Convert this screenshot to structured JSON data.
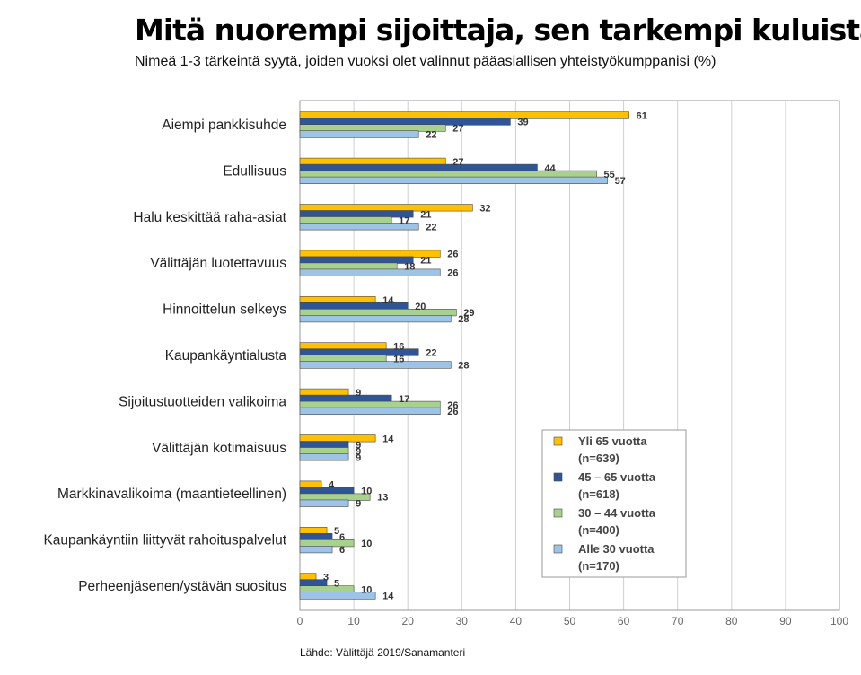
{
  "header": {
    "title": "Mitä nuorempi sijoittaja, sen tarkempi kuluista",
    "subtitle": "Nimeä 1-3 tärkeintä syytä, joiden vuoksi olet valinnut pääasiallisen yhteistyökumppanisi (%)"
  },
  "source": "Lähde: Välittäjä 2019/Sanamanteri",
  "chart_data": {
    "type": "bar",
    "orientation": "horizontal",
    "title": "Mitä nuorempi sijoittaja, sen tarkempi kuluista",
    "subtitle": "Nimeä 1-3 tärkeintä syytä, joiden vuoksi olet valinnut pääasiallisen yhteistyökumppanisi (%)",
    "xlim": [
      0,
      100
    ],
    "xticks": [
      0,
      10,
      20,
      30,
      40,
      50,
      60,
      70,
      80,
      90,
      100
    ],
    "grid": "vertical",
    "legend_position": "bottom-right",
    "categories": [
      "Aiempi pankkisuhde",
      "Edullisuus",
      "Halu keskittää raha-asiat",
      "Välittäjän luotettavuus",
      "Hinnoittelun selkeys",
      "Kaupankäyntialusta",
      "Sijoitustuotteiden valikoima",
      "Välittäjän kotimaisuus",
      "Markkinavalikoima (maantieteellinen)",
      "Kaupankäyntiin liittyvät rahoituspalvelut",
      "Perheenjäsenen/ystävän suositus"
    ],
    "series": [
      {
        "name": "Yli 65 vuotta",
        "n": "(n=639)",
        "color": "#FFC000",
        "values": [
          61,
          27,
          32,
          26,
          14,
          16,
          9,
          14,
          4,
          5,
          3
        ]
      },
      {
        "name": "45 – 65 vuotta",
        "n": "(n=618)",
        "color": "#2F5597",
        "values": [
          39,
          44,
          21,
          21,
          20,
          22,
          17,
          9,
          10,
          6,
          5
        ]
      },
      {
        "name": "30 – 44 vuotta",
        "n": "(n=400)",
        "color": "#A9D18E",
        "values": [
          27,
          55,
          17,
          18,
          29,
          16,
          26,
          9,
          13,
          10,
          10
        ]
      },
      {
        "name": "Alle 30 vuotta",
        "n": "(n=170)",
        "color": "#9DC3E6",
        "values": [
          22,
          57,
          22,
          26,
          28,
          28,
          26,
          9,
          9,
          6,
          14
        ]
      }
    ]
  }
}
